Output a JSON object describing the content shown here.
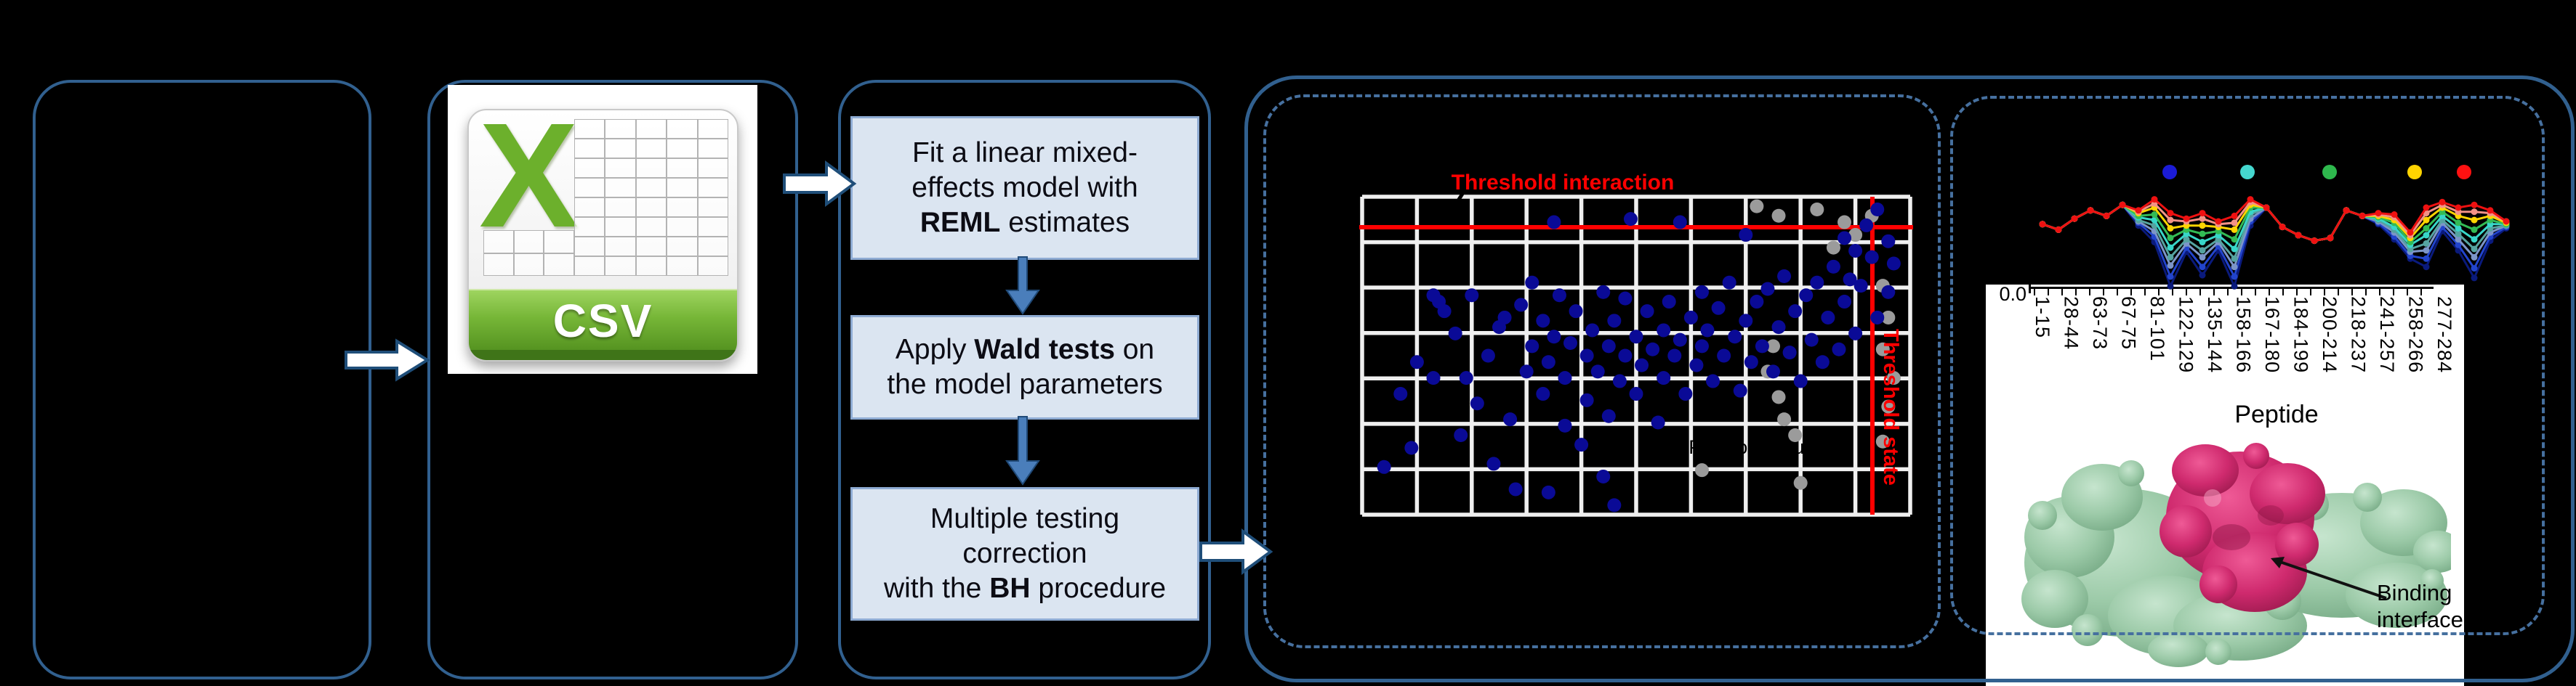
{
  "palette": {
    "panel_border": "#31608f",
    "dashed_border": "#46709f",
    "box_fill": "#dbe5f1",
    "box_border": "#8eabd3",
    "threshold_red": "#ff0000",
    "dot_blue": "#0a0a96",
    "dot_gray": "#9b9b9b",
    "grid_white": "#efefef",
    "csv_green": "#6cb02c",
    "arrow_fill": "#ffffff",
    "arrow_stroke": "#1f4e79",
    "flow_arrow_blue": "#4a7ebb",
    "protein_green": "#9ccaa8",
    "protein_magenta": "#cf2a6e"
  },
  "csv_icon": {
    "x_label": "X",
    "banner_label": "CSV"
  },
  "flow_steps": [
    {
      "lines": [
        [
          {
            "t": "Fit a linear mixed-"
          }
        ],
        [
          {
            "t": "effects model with"
          }
        ],
        [
          {
            "t": "REML",
            "b": true
          },
          {
            "t": " estimates"
          }
        ]
      ]
    },
    {
      "lines": [
        [
          {
            "t": "Apply "
          },
          {
            "t": "Wald tests",
            "b": true
          },
          {
            "t": " on"
          }
        ],
        [
          {
            "t": "the model parameters"
          }
        ]
      ]
    },
    {
      "lines": [
        [
          {
            "t": "Multiple testing"
          }
        ],
        [
          {
            "t": "correction"
          }
        ],
        [
          {
            "t": "with the "
          },
          {
            "t": "BH",
            "b": true
          },
          {
            "t": " procedure"
          }
        ]
      ]
    }
  ],
  "protein": {
    "annotation_lines": [
      "Binding",
      "interface"
    ]
  },
  "chart_data": [
    {
      "id": "interaction_scatter",
      "type": "scatter",
      "title": "Threshold interaction",
      "threshold_state_label": "Threshold state",
      "inplot_axis_note": "Positional clusters",
      "grid_cols": 10,
      "grid_rows": 7,
      "red_h_pct": 9.6,
      "red_v_pct": 93.1,
      "blue_points": [
        [
          4,
          85
        ],
        [
          7,
          62
        ],
        [
          9,
          79
        ],
        [
          10,
          52
        ],
        [
          13,
          31
        ],
        [
          13,
          57
        ],
        [
          14,
          33
        ],
        [
          15,
          36
        ],
        [
          17,
          43
        ],
        [
          18,
          75
        ],
        [
          19,
          57
        ],
        [
          20,
          31
        ],
        [
          21,
          65
        ],
        [
          23,
          50
        ],
        [
          24,
          84
        ],
        [
          25,
          41
        ],
        [
          26,
          38
        ],
        [
          27,
          70
        ],
        [
          28,
          92
        ],
        [
          29,
          34
        ],
        [
          30,
          55
        ],
        [
          31,
          27
        ],
        [
          31,
          47
        ],
        [
          33,
          39
        ],
        [
          33,
          62
        ],
        [
          34,
          52
        ],
        [
          34,
          93
        ],
        [
          35,
          8
        ],
        [
          35,
          44
        ],
        [
          36,
          31
        ],
        [
          37,
          57
        ],
        [
          37,
          72
        ],
        [
          38,
          46
        ],
        [
          39,
          36
        ],
        [
          40,
          78
        ],
        [
          41,
          50
        ],
        [
          41,
          64
        ],
        [
          42,
          42
        ],
        [
          43,
          55
        ],
        [
          44,
          30
        ],
        [
          44,
          88
        ],
        [
          45,
          47
        ],
        [
          45,
          69
        ],
        [
          46,
          39
        ],
        [
          46,
          97
        ],
        [
          47,
          58
        ],
        [
          48,
          32
        ],
        [
          48,
          50
        ],
        [
          49,
          7
        ],
        [
          50,
          44
        ],
        [
          50,
          62
        ],
        [
          51,
          53
        ],
        [
          52,
          36
        ],
        [
          53,
          48
        ],
        [
          54,
          71
        ],
        [
          55,
          42
        ],
        [
          55,
          57
        ],
        [
          56,
          33
        ],
        [
          57,
          50
        ],
        [
          58,
          8
        ],
        [
          58,
          45
        ],
        [
          59,
          62
        ],
        [
          60,
          38
        ],
        [
          61,
          53
        ],
        [
          62,
          30
        ],
        [
          62,
          47
        ],
        [
          63,
          42
        ],
        [
          64,
          58
        ],
        [
          65,
          35
        ],
        [
          66,
          50
        ],
        [
          67,
          27
        ],
        [
          68,
          44
        ],
        [
          69,
          61
        ],
        [
          70,
          12
        ],
        [
          70,
          39
        ],
        [
          71,
          52
        ],
        [
          72,
          33
        ],
        [
          73,
          47
        ],
        [
          74,
          29
        ],
        [
          75,
          55
        ],
        [
          76,
          41
        ],
        [
          77,
          25
        ],
        [
          78,
          49
        ],
        [
          79,
          36
        ],
        [
          80,
          58
        ],
        [
          81,
          31
        ],
        [
          82,
          45
        ],
        [
          83,
          27
        ],
        [
          84,
          52
        ],
        [
          85,
          38
        ],
        [
          86,
          22
        ],
        [
          87,
          48
        ],
        [
          88,
          13
        ],
        [
          88,
          33
        ],
        [
          89,
          26
        ],
        [
          90,
          17
        ],
        [
          90,
          43
        ],
        [
          91,
          28
        ],
        [
          92,
          9
        ],
        [
          93,
          19
        ],
        [
          94,
          4
        ],
        [
          94,
          38
        ],
        [
          96,
          14
        ],
        [
          96,
          30
        ],
        [
          97,
          21
        ]
      ],
      "gray_points": [
        [
          75,
          47
        ],
        [
          74,
          55
        ],
        [
          76,
          63
        ],
        [
          77,
          70
        ],
        [
          79,
          75
        ],
        [
          62,
          86
        ],
        [
          80,
          90
        ],
        [
          72,
          3
        ],
        [
          76,
          6
        ],
        [
          83,
          4
        ],
        [
          88,
          8
        ],
        [
          90,
          12
        ],
        [
          86,
          16
        ],
        [
          95,
          28
        ],
        [
          96,
          38
        ],
        [
          95,
          48
        ],
        [
          97,
          57
        ],
        [
          96,
          66
        ],
        [
          95,
          77
        ],
        [
          93,
          6
        ]
      ]
    },
    {
      "id": "deuterium_uptake",
      "type": "line",
      "y_tick_label": "0.0",
      "xlabel": "Peptide",
      "x_tick_labels": [
        "1-15",
        "28-44",
        "63-73",
        "67-75",
        "81-101",
        "122-129",
        "135-144",
        "158-166",
        "167-180",
        "184-199",
        "200-214",
        "218-237",
        "241-257",
        "258-266",
        "277-284"
      ],
      "legend_dot_colors": [
        "#1b1bd6",
        "#45d8cf",
        "#2eb84d",
        "#ffd400",
        "#ff1111"
      ],
      "series": [
        {
          "name": "series_1",
          "color": "#0a1a7c",
          "values": [
            0.48,
            0.44,
            0.52,
            0.58,
            0.54,
            0.62,
            0.47,
            0.35,
            0.03,
            0.28,
            0.11,
            0.29,
            0.03,
            0.47,
            0.6,
            0.46,
            0.4,
            0.36,
            0.38,
            0.58,
            0.54,
            0.48,
            0.37,
            0.23,
            0.17,
            0.43,
            0.29,
            0.09,
            0.36,
            0.45
          ]
        },
        {
          "name": "series_2",
          "color": "#2244cc",
          "values": [
            0.48,
            0.44,
            0.52,
            0.58,
            0.54,
            0.62,
            0.49,
            0.39,
            0.1,
            0.31,
            0.17,
            0.32,
            0.1,
            0.5,
            0.6,
            0.46,
            0.4,
            0.36,
            0.38,
            0.58,
            0.54,
            0.49,
            0.39,
            0.25,
            0.23,
            0.46,
            0.33,
            0.16,
            0.39,
            0.46
          ]
        },
        {
          "name": "series_3",
          "color": "#7c95c8",
          "values": [
            0.48,
            0.44,
            0.52,
            0.58,
            0.54,
            0.62,
            0.5,
            0.43,
            0.18,
            0.34,
            0.24,
            0.35,
            0.17,
            0.52,
            0.6,
            0.46,
            0.4,
            0.36,
            0.38,
            0.58,
            0.54,
            0.5,
            0.42,
            0.28,
            0.29,
            0.49,
            0.37,
            0.24,
            0.42,
            0.47
          ]
        },
        {
          "name": "series_4",
          "color": "#55a3a0",
          "values": [
            0.48,
            0.44,
            0.52,
            0.58,
            0.54,
            0.62,
            0.51,
            0.47,
            0.24,
            0.37,
            0.29,
            0.37,
            0.23,
            0.55,
            0.6,
            0.46,
            0.4,
            0.36,
            0.38,
            0.58,
            0.54,
            0.51,
            0.44,
            0.3,
            0.34,
            0.51,
            0.41,
            0.3,
            0.45,
            0.47
          ]
        },
        {
          "name": "series_5",
          "color": "#38d6c8",
          "values": [
            0.48,
            0.44,
            0.52,
            0.58,
            0.54,
            0.62,
            0.53,
            0.51,
            0.31,
            0.41,
            0.35,
            0.4,
            0.3,
            0.57,
            0.6,
            0.46,
            0.4,
            0.36,
            0.38,
            0.58,
            0.54,
            0.52,
            0.46,
            0.33,
            0.4,
            0.54,
            0.45,
            0.37,
            0.48,
            0.48
          ]
        },
        {
          "name": "series_6",
          "color": "#33bb55",
          "values": [
            0.48,
            0.44,
            0.52,
            0.58,
            0.54,
            0.62,
            0.54,
            0.55,
            0.38,
            0.44,
            0.41,
            0.43,
            0.37,
            0.6,
            0.6,
            0.46,
            0.4,
            0.36,
            0.38,
            0.58,
            0.54,
            0.53,
            0.49,
            0.35,
            0.45,
            0.57,
            0.49,
            0.44,
            0.51,
            0.48
          ]
        },
        {
          "name": "series_7",
          "color": "#ffd500",
          "values": [
            0.48,
            0.44,
            0.52,
            0.58,
            0.54,
            0.62,
            0.56,
            0.6,
            0.45,
            0.47,
            0.47,
            0.46,
            0.44,
            0.62,
            0.6,
            0.46,
            0.4,
            0.36,
            0.38,
            0.58,
            0.54,
            0.54,
            0.51,
            0.38,
            0.51,
            0.6,
            0.54,
            0.51,
            0.54,
            0.49
          ]
        },
        {
          "name": "series_8",
          "color": "#f29286",
          "values": [
            0.48,
            0.44,
            0.52,
            0.58,
            0.54,
            0.62,
            0.57,
            0.63,
            0.51,
            0.5,
            0.52,
            0.48,
            0.49,
            0.64,
            0.6,
            0.46,
            0.4,
            0.36,
            0.38,
            0.58,
            0.54,
            0.55,
            0.53,
            0.4,
            0.56,
            0.62,
            0.57,
            0.57,
            0.56,
            0.5
          ]
        },
        {
          "name": "series_9",
          "color": "#ee1111",
          "values": [
            0.48,
            0.44,
            0.52,
            0.58,
            0.54,
            0.62,
            0.58,
            0.66,
            0.56,
            0.52,
            0.56,
            0.5,
            0.54,
            0.66,
            0.6,
            0.46,
            0.4,
            0.36,
            0.38,
            0.58,
            0.54,
            0.56,
            0.55,
            0.42,
            0.6,
            0.64,
            0.6,
            0.62,
            0.58,
            0.5
          ]
        }
      ]
    }
  ]
}
